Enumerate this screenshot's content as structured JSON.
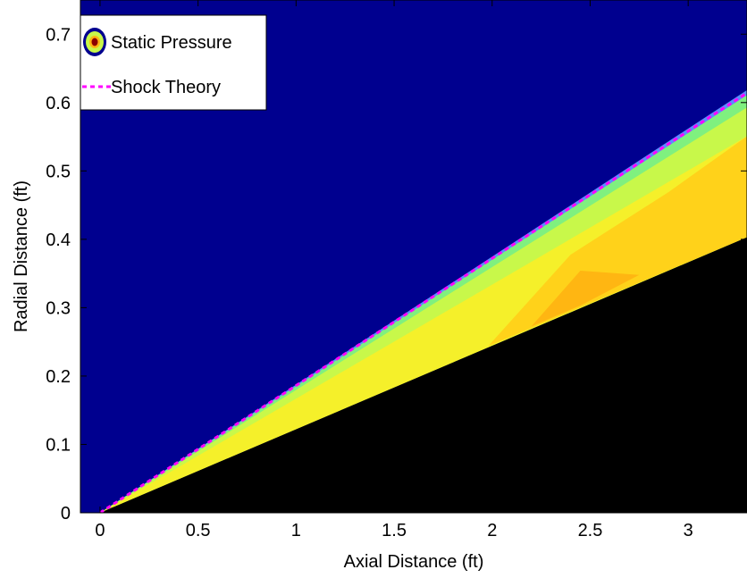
{
  "chart_data": {
    "type": "area",
    "title": "",
    "xlabel": "Axial Distance (ft)",
    "ylabel": "Radial Distance (ft)",
    "xlim": [
      -0.1,
      3.3
    ],
    "ylim": [
      0,
      0.75
    ],
    "xticks": [
      0,
      0.5,
      1,
      1.5,
      2,
      2.5,
      3
    ],
    "yticks": [
      0,
      0.1,
      0.2,
      0.3,
      0.4,
      0.5,
      0.6,
      0.7
    ],
    "xtick_labels": [
      "0",
      "0.5",
      "1",
      "1.5",
      "2",
      "2.5",
      "3"
    ],
    "ytick_labels": [
      "0",
      "0.1",
      "0.2",
      "0.3",
      "0.4",
      "0.5",
      "0.6",
      "0.7"
    ],
    "grid": false,
    "legend_position": "top-left",
    "series": [
      {
        "name": "Static Pressure",
        "kind": "filled-contour",
        "colormap": "jet",
        "background_color": "#00008f",
        "body_color": "#000000"
      },
      {
        "name": "Shock Theory",
        "kind": "line",
        "style": "dashed",
        "color": "#ff00ff",
        "x": [
          0,
          3.3
        ],
        "y": [
          0,
          0.614
        ]
      }
    ],
    "cone_surface": {
      "x": [
        0,
        3.3
      ],
      "y": [
        0,
        0.403
      ]
    },
    "contour_colors": [
      "#00008f",
      "#5a8cff",
      "#7ff07f",
      "#c8f84a",
      "#f5f02a",
      "#ffd21a",
      "#ffb612",
      "#ff9e10"
    ]
  }
}
